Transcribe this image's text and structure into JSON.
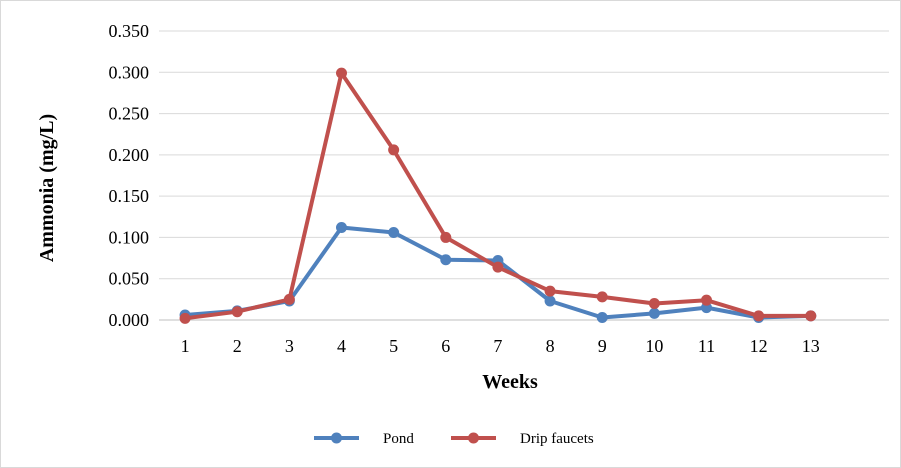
{
  "chart_data": {
    "type": "line",
    "title": "",
    "xlabel": "Weeks",
    "ylabel": "Ammonia (mg/L)",
    "categories": [
      "1",
      "2",
      "3",
      "4",
      "5",
      "6",
      "7",
      "8",
      "9",
      "10",
      "11",
      "12",
      "13"
    ],
    "ylim": [
      0,
      0.35
    ],
    "yticks": [
      "0.000",
      "0.050",
      "0.100",
      "0.150",
      "0.200",
      "0.250",
      "0.300",
      "0.350"
    ],
    "grid": true,
    "legend_position": "bottom",
    "series": [
      {
        "name": "Pond",
        "color": "#4f81bd",
        "values": [
          0.006,
          0.011,
          0.023,
          0.112,
          0.106,
          0.073,
          0.072,
          0.023,
          0.003,
          0.008,
          0.015,
          0.003,
          0.005
        ]
      },
      {
        "name": "Drip faucets",
        "color": "#c0504d",
        "values": [
          0.002,
          0.01,
          0.025,
          0.299,
          0.206,
          0.1,
          0.064,
          0.035,
          0.028,
          0.02,
          0.024,
          0.005,
          0.005
        ]
      }
    ]
  }
}
